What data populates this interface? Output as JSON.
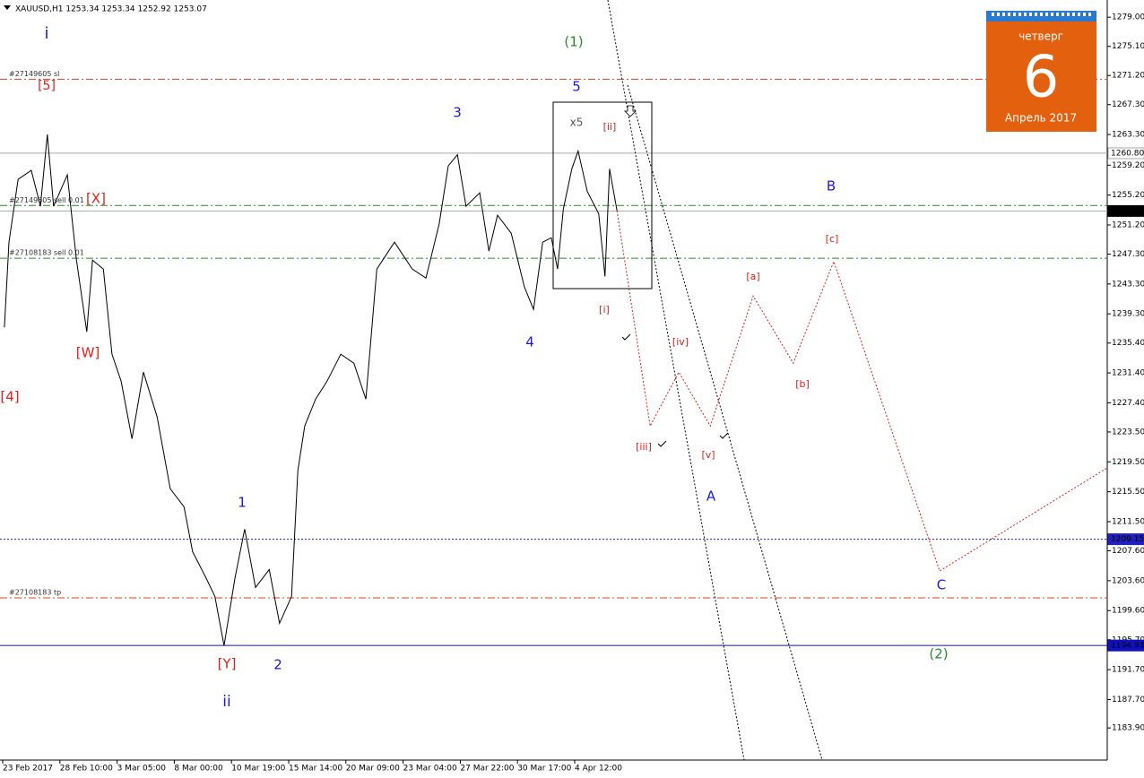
{
  "chart_data": {
    "type": "line",
    "title": "XAUUSD,H1  1253.34 1253.34 1252.92 1253.07",
    "xlim": [
      0,
      19.31
    ],
    "ylim": [
      1179.6,
      1281.3
    ],
    "xticks": [
      {
        "value": 0,
        "label": "23 Feb 2017"
      },
      {
        "value": 1,
        "label": "28 Feb 10:00"
      },
      {
        "value": 2,
        "label": "3 Mar 05:00"
      },
      {
        "value": 3,
        "label": "8 Mar 00:00"
      },
      {
        "value": 4,
        "label": "10 Mar 19:00"
      },
      {
        "value": 5,
        "label": "15 Mar 14:00"
      },
      {
        "value": 6,
        "label": "20 Mar 09:00"
      },
      {
        "value": 7,
        "label": "23 Mar 04:00"
      },
      {
        "value": 8,
        "label": "27 Mar 22:00"
      },
      {
        "value": 9,
        "label": "30 Mar 17:00"
      },
      {
        "value": 10,
        "label": "4 Apr 12:00"
      }
    ],
    "yticks": [
      {
        "value": 1279,
        "label": "1279.00"
      },
      {
        "value": 1275.1,
        "label": "1275.10"
      },
      {
        "value": 1271.2,
        "label": "1271.20"
      },
      {
        "value": 1267.3,
        "label": "1267.30"
      },
      {
        "value": 1263.3,
        "label": "1263.30"
      },
      {
        "value": 1259.2,
        "label": "1259.20"
      },
      {
        "value": 1255.2,
        "label": "1255.20"
      },
      {
        "value": 1251.2,
        "label": "1251.20"
      },
      {
        "value": 1247.3,
        "label": "1247.30"
      },
      {
        "value": 1243.3,
        "label": "1243.30"
      },
      {
        "value": 1239.3,
        "label": "1239.30"
      },
      {
        "value": 1235.4,
        "label": "1235.40"
      },
      {
        "value": 1231.4,
        "label": "1231.40"
      },
      {
        "value": 1227.4,
        "label": "1227.40"
      },
      {
        "value": 1223.5,
        "label": "1223.50"
      },
      {
        "value": 1219.5,
        "label": "1219.50"
      },
      {
        "value": 1215.5,
        "label": "1215.50"
      },
      {
        "value": 1211.5,
        "label": "1211.50"
      },
      {
        "value": 1207.6,
        "label": "1207.60"
      },
      {
        "value": 1203.6,
        "label": "1203.60"
      },
      {
        "value": 1199.6,
        "label": "1199.60"
      },
      {
        "value": 1195.7,
        "label": "1195.70"
      },
      {
        "value": 1191.7,
        "label": "1191.70"
      },
      {
        "value": 1187.7,
        "label": "1187.70"
      },
      {
        "value": 1183.9,
        "label": "1183.90"
      }
    ],
    "series": [
      {
        "color": "#000000",
        "x": [
          0.03,
          0.11,
          0.27,
          0.5,
          0.66,
          0.78,
          0.89,
          1.13,
          1.29,
          1.47,
          1.57,
          1.76,
          1.91,
          2.07,
          2.26,
          2.46,
          2.7,
          2.93,
          3.17,
          3.32,
          3.56,
          3.71,
          3.87,
          4.06,
          4.23,
          4.42,
          4.66,
          4.84,
          5.05,
          5.16,
          5.28,
          5.47,
          5.67,
          5.91,
          6.14,
          6.35,
          6.54,
          6.85,
          7.16,
          7.4,
          7.63,
          7.79,
          7.95,
          8.1,
          8.34,
          8.5,
          8.65,
          8.89,
          9.12,
          9.28,
          9.44,
          9.59,
          9.7,
          9.8,
          9.95,
          10.06,
          10.22,
          10.42,
          10.53,
          10.61,
          10.74
        ],
        "values": [
          1237.5,
          1248.9,
          1257.3,
          1258.5,
          1253.7,
          1263.3,
          1253.7,
          1257.9,
          1246.5,
          1236.9,
          1246.5,
          1245.3,
          1233.9,
          1230.3,
          1222.6,
          1231.5,
          1225.5,
          1215.9,
          1213.5,
          1207.5,
          1203.9,
          1201.5,
          1194.9,
          1203.9,
          1210.5,
          1202.7,
          1205.1,
          1197.9,
          1201.5,
          1218.3,
          1224.3,
          1227.9,
          1230.3,
          1233.9,
          1232.7,
          1227.9,
          1245.3,
          1248.9,
          1245.3,
          1244.1,
          1251.3,
          1259.1,
          1260.6,
          1253.7,
          1255.5,
          1247.7,
          1252.5,
          1250.1,
          1242.9,
          1239.9,
          1248.9,
          1249.5,
          1245.3,
          1253.3,
          1258.7,
          1261.1,
          1255.7,
          1252.7,
          1244.3,
          1258.7,
          1253.1
        ]
      },
      {
        "color": "#e0201a",
        "x": [
          10.74,
          11.32,
          11.82,
          12.37,
          13.12,
          13.82,
          14.53,
          16.38,
          19.31
        ],
        "values": [
          1253.1,
          1224.3,
          1231.5,
          1224.3,
          1241.7,
          1232.7,
          1246.3,
          1204.9,
          1218.7
        ]
      }
    ],
    "levels": [
      {
        "value": 1270.7,
        "text": "#27149605 sl",
        "color": "#e0401a",
        "style": "dashdot"
      },
      {
        "value": 1260.8,
        "price_label": "1260.80",
        "color": "#aaaaaa",
        "style": "solid"
      },
      {
        "value": 1253.8,
        "text": "#27149605 sell 0.01",
        "color": "#2a8a2a",
        "style": "dashdot"
      },
      {
        "value": 1253.07,
        "price_label": "1253.07",
        "color": "#aaaaaa",
        "style": "solid"
      },
      {
        "value": 1246.75,
        "text": "#27108183 sell 0.01",
        "color": "#2a8a2a",
        "style": "dashdot"
      },
      {
        "value": 1209.15,
        "price_label": "1209.15",
        "color": "#2020c0",
        "style": "dotted"
      },
      {
        "value": 1201.3,
        "text": "#27108183 tp",
        "color": "#e0401a",
        "style": "dashdot"
      },
      {
        "value": 1194.93,
        "price_label": "1194.93",
        "color": "#1010c0",
        "style": "solid"
      }
    ],
    "annotations": [
      {
        "text": "i",
        "color": "#1a1ad8"
      },
      {
        "text": "[5]",
        "color": "#e0201a"
      },
      {
        "text": "(1)",
        "color": "#2a8a2a"
      },
      {
        "text": "5",
        "color": "#1a1ad8"
      },
      {
        "text": "3",
        "color": "#1a1ad8"
      },
      {
        "text": "x5",
        "color": "#555555"
      },
      {
        "text": "[ii]",
        "color": "#e0201a"
      },
      {
        "text": "[X]",
        "color": "#e0201a"
      },
      {
        "text": "B",
        "color": "#1a1ad8"
      },
      {
        "text": "[c]",
        "color": "#e0201a"
      },
      {
        "text": "[a]",
        "color": "#e0201a"
      },
      {
        "text": "[i]",
        "color": "#e0201a"
      },
      {
        "text": "4",
        "color": "#1a1ad8"
      },
      {
        "text": "[iv]",
        "color": "#e0201a"
      },
      {
        "text": "[W]",
        "color": "#e0201a"
      },
      {
        "text": "[b]",
        "color": "#e0201a"
      },
      {
        "text": "[4]",
        "color": "#e0201a"
      },
      {
        "text": "[iii]",
        "color": "#e0201a"
      },
      {
        "text": "[v]",
        "color": "#e0201a"
      },
      {
        "text": "A",
        "color": "#1a1ad8"
      },
      {
        "text": "1",
        "color": "#1a1ad8"
      },
      {
        "text": "C",
        "color": "#1a1ad8"
      },
      {
        "text": "(2)",
        "color": "#2a8a2a"
      },
      {
        "text": "[Y]",
        "color": "#e0201a"
      },
      {
        "text": "2",
        "color": "#1a1ad8"
      },
      {
        "text": "ii",
        "color": "#1a1ad8"
      }
    ]
  },
  "calendar": {
    "weekday": "четверг",
    "day": "6",
    "month": "Апрель 2017"
  }
}
